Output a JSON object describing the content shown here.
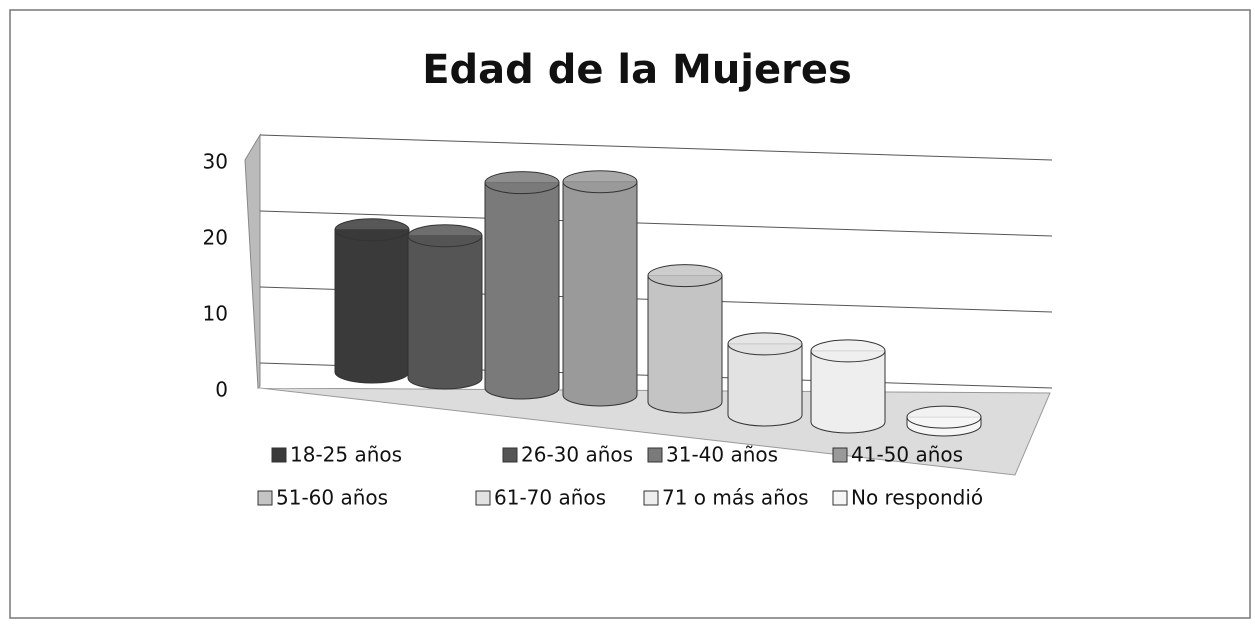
{
  "chart_data": {
    "type": "bar3d",
    "title": "Edad de la Mujeres",
    "categories": [
      "18-25 años",
      "26-30 años",
      "31-40 años",
      "41-50 años",
      "51-60 años",
      "61-70 años",
      "71 o más años",
      "No respondió"
    ],
    "values": [
      18,
      18,
      26,
      27,
      16,
      9,
      9,
      1
    ],
    "colors": [
      "#3a3a3a",
      "#555555",
      "#7a7a7a",
      "#9a9a9a",
      "#c4c4c4",
      "#e2e2e2",
      "#eeeeee",
      "#f6f6f6"
    ],
    "ylim": [
      0,
      30
    ],
    "yticks": [
      0,
      10,
      20,
      30
    ],
    "grid": true
  }
}
